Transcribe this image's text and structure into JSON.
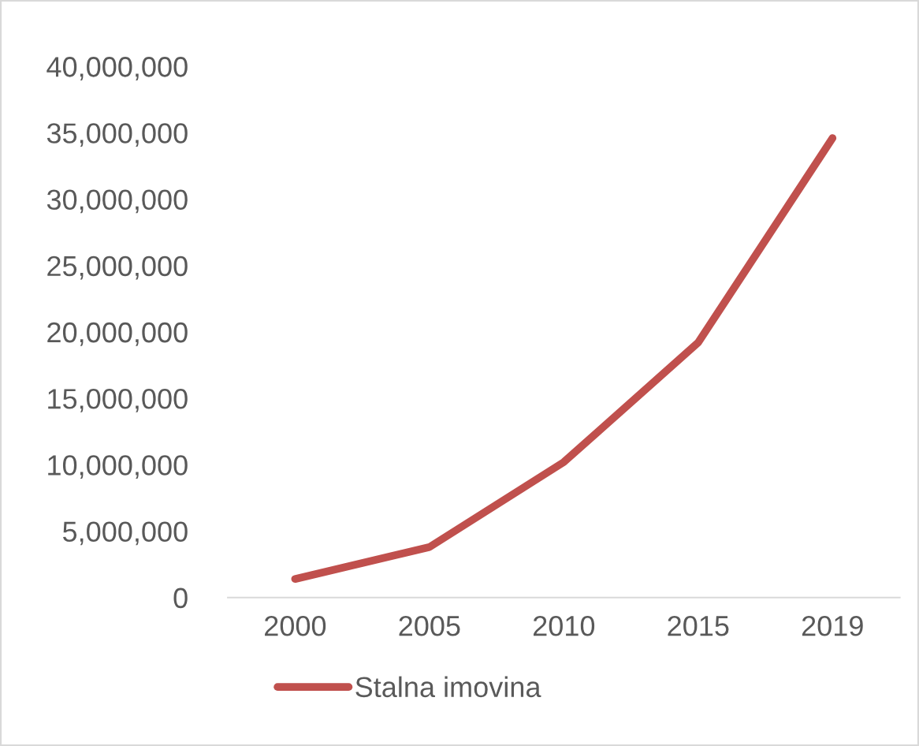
{
  "chart_data": {
    "type": "line",
    "categories": [
      "2000",
      "2005",
      "2010",
      "2015",
      "2019"
    ],
    "series": [
      {
        "name": "Stalna imovina",
        "color": "#c0504d",
        "values": [
          1400000,
          3800000,
          10200000,
          19200000,
          34600000
        ]
      }
    ],
    "ylim": [
      0,
      40000000
    ],
    "yticks": [
      {
        "value": 0,
        "label": "0"
      },
      {
        "value": 5000000,
        "label": "5,000,000"
      },
      {
        "value": 10000000,
        "label": "10,000,000"
      },
      {
        "value": 15000000,
        "label": "15,000,000"
      },
      {
        "value": 20000000,
        "label": "20,000,000"
      },
      {
        "value": 25000000,
        "label": "25,000,000"
      },
      {
        "value": 30000000,
        "label": "30,000,000"
      },
      {
        "value": 35000000,
        "label": "35,000,000"
      },
      {
        "value": 40000000,
        "label": "40,000,000"
      }
    ],
    "grid": false,
    "legend": "bottom",
    "marker": "none",
    "line_style": "solid"
  }
}
